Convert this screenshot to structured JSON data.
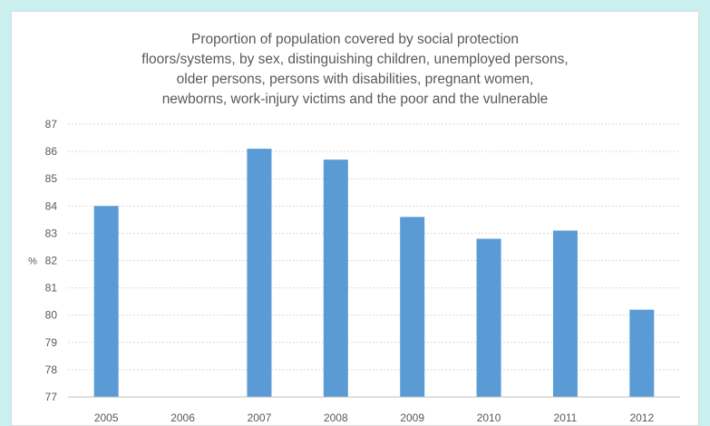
{
  "chart_data": {
    "type": "bar",
    "title_lines": [
      "Proportion of population covered by social protection",
      "floors/systems, by sex, distinguishing children, unemployed persons,",
      "older persons, persons with disabilities, pregnant women,",
      "newborns, work-injury victims and the poor and the vulnerable"
    ],
    "ylabel": "%",
    "xlabel": "",
    "categories": [
      "2005",
      "2006",
      "2007",
      "2008",
      "2009",
      "2010",
      "2011",
      "2012"
    ],
    "values": [
      84.0,
      null,
      86.1,
      85.7,
      83.6,
      82.8,
      83.1,
      80.2
    ],
    "ylim": [
      77,
      87
    ],
    "yticks": [
      "77",
      "78",
      "79",
      "80",
      "81",
      "82",
      "83",
      "84",
      "85",
      "86",
      "87"
    ],
    "grid": true,
    "legend": "none",
    "colors": {
      "bar": "#5b9bd5",
      "grid": "#d9d9d9",
      "axis": "#bfbfbf",
      "text": "#595959",
      "background": "#c9f0ee"
    }
  }
}
